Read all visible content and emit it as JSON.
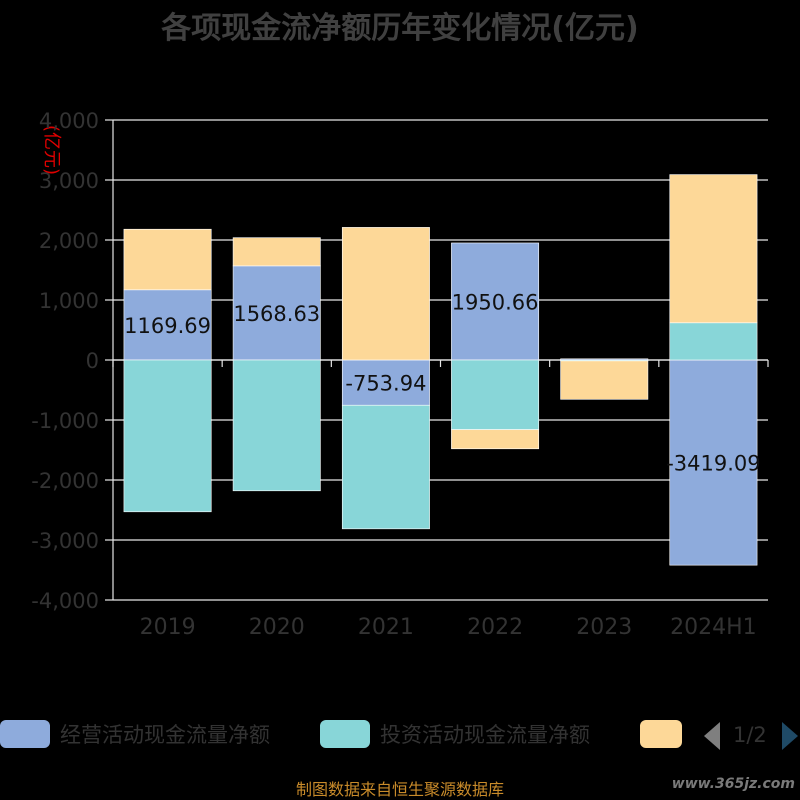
{
  "chart_data": {
    "type": "bar",
    "stacked": true,
    "title": "各项现金流净额历年变化情况(亿元)",
    "unit_label": "(亿元)",
    "categories": [
      "2019",
      "2020",
      "2021",
      "2022",
      "2023",
      "2024H1"
    ],
    "ylim": [
      -4000,
      4000
    ],
    "yticks": [
      "4,000",
      "3,000",
      "2,000",
      "1,000",
      "0",
      "-1,000",
      "-2,000",
      "-3,000",
      "-4,000"
    ],
    "ytick_values": [
      4000,
      3000,
      2000,
      1000,
      0,
      -1000,
      -2000,
      -3000,
      -4000
    ],
    "grid": true,
    "legend_position": "bottom",
    "series": [
      {
        "name": "经营活动现金流量净额",
        "color": "#8eabdc",
        "values": [
          1169.69,
          1568.63,
          -753.94,
          1950.66,
          20,
          -3419.09
        ],
        "labels": [
          "1169.69",
          "1568.63",
          "-753.94",
          "1950.66",
          "",
          "-3419.09"
        ]
      },
      {
        "name": "投资活动现金流量净额",
        "color": "#88d6d8",
        "values": [
          -2530,
          -2180,
          -2060,
          -1160,
          -15,
          620
        ]
      },
      {
        "name": "",
        "color": "#fdd898",
        "values": [
          1010,
          470,
          2210,
          -320,
          -640,
          2470
        ]
      }
    ]
  },
  "legend": {
    "page": "1/2",
    "prev_icon": "triangle-left-icon",
    "next_icon": "triangle-right-icon"
  },
  "footer": {
    "source": "制图数据来自恒生聚源数据库",
    "watermark": "www.365jz.com"
  }
}
